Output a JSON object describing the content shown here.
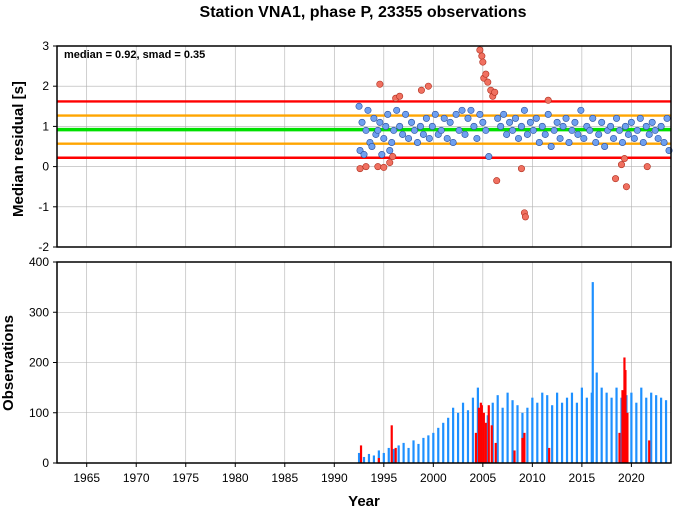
{
  "title": "Station VNA1, phase P, 23355 observations",
  "colors": {
    "median_line": "#00e000",
    "inner_band": "#ffa500",
    "outer_band": "#ff0000",
    "inlier_points": "#6fa0f0",
    "outlier_points": "#f07060",
    "obs_normal": "#1e90ff",
    "obs_flagged": "#ff0000",
    "grid": "#b0b0b0"
  },
  "chart_data": [
    {
      "type": "scatter",
      "ylabel": "Median residual [s]",
      "annotation": "median = 0.92, smad = 0.35",
      "xlim": [
        1962,
        2024
      ],
      "ylim": [
        -2,
        3
      ],
      "y_ticks": [
        "3",
        "2",
        "1",
        "0",
        "-1",
        "-2"
      ],
      "grid": true,
      "reference_lines": [
        {
          "label": "median",
          "y": 0.92
        },
        {
          "label": "median ± 1 smad",
          "y": [
            0.57,
            1.27
          ]
        },
        {
          "label": "median ± 2 smad",
          "y": [
            0.22,
            1.62
          ]
        }
      ],
      "inliers": [
        [
          1992.5,
          1.5
        ],
        [
          1992.6,
          0.4
        ],
        [
          1992.8,
          1.1
        ],
        [
          1993.0,
          0.3
        ],
        [
          1993.2,
          0.9
        ],
        [
          1993.4,
          1.4
        ],
        [
          1993.6,
          0.6
        ],
        [
          1993.8,
          0.5
        ],
        [
          1994.0,
          1.2
        ],
        [
          1994.2,
          0.8
        ],
        [
          1994.4,
          0.9
        ],
        [
          1994.6,
          1.1
        ],
        [
          1994.8,
          0.3
        ],
        [
          1995.0,
          0.7
        ],
        [
          1995.2,
          1.0
        ],
        [
          1995.4,
          1.3
        ],
        [
          1995.6,
          0.4
        ],
        [
          1995.8,
          0.6
        ],
        [
          1996.0,
          0.9
        ],
        [
          1996.3,
          1.4
        ],
        [
          1996.6,
          1.0
        ],
        [
          1996.9,
          0.8
        ],
        [
          1997.2,
          1.3
        ],
        [
          1997.5,
          0.7
        ],
        [
          1997.8,
          1.1
        ],
        [
          1998.1,
          0.9
        ],
        [
          1998.4,
          0.6
        ],
        [
          1998.7,
          1.0
        ],
        [
          1999.0,
          0.8
        ],
        [
          1999.3,
          1.2
        ],
        [
          1999.6,
          0.7
        ],
        [
          1999.9,
          1.0
        ],
        [
          2000.2,
          1.3
        ],
        [
          2000.5,
          0.8
        ],
        [
          2000.8,
          0.9
        ],
        [
          2001.1,
          1.2
        ],
        [
          2001.4,
          0.7
        ],
        [
          2001.7,
          1.1
        ],
        [
          2002.0,
          0.6
        ],
        [
          2002.3,
          1.3
        ],
        [
          2002.6,
          0.9
        ],
        [
          2002.9,
          1.4
        ],
        [
          2003.2,
          0.8
        ],
        [
          2003.5,
          1.2
        ],
        [
          2003.8,
          1.4
        ],
        [
          2004.1,
          1.0
        ],
        [
          2004.4,
          0.7
        ],
        [
          2004.7,
          1.3
        ],
        [
          2005.0,
          1.1
        ],
        [
          2005.3,
          0.9
        ],
        [
          2005.6,
          0.25
        ],
        [
          2006.5,
          1.2
        ],
        [
          2006.8,
          1.0
        ],
        [
          2007.1,
          1.3
        ],
        [
          2007.4,
          0.8
        ],
        [
          2007.7,
          1.1
        ],
        [
          2008.0,
          0.9
        ],
        [
          2008.3,
          1.2
        ],
        [
          2008.6,
          0.7
        ],
        [
          2008.9,
          1.0
        ],
        [
          2009.2,
          1.4
        ],
        [
          2009.5,
          0.8
        ],
        [
          2009.8,
          1.1
        ],
        [
          2010.1,
          0.9
        ],
        [
          2010.4,
          1.2
        ],
        [
          2010.7,
          0.6
        ],
        [
          2011.0,
          1.0
        ],
        [
          2011.3,
          0.8
        ],
        [
          2011.6,
          1.3
        ],
        [
          2011.9,
          0.5
        ],
        [
          2012.2,
          0.9
        ],
        [
          2012.5,
          1.1
        ],
        [
          2012.8,
          0.7
        ],
        [
          2013.1,
          1.0
        ],
        [
          2013.4,
          1.2
        ],
        [
          2013.7,
          0.6
        ],
        [
          2014.0,
          0.9
        ],
        [
          2014.3,
          1.1
        ],
        [
          2014.6,
          0.8
        ],
        [
          2014.9,
          1.4
        ],
        [
          2015.2,
          0.7
        ],
        [
          2015.5,
          1.0
        ],
        [
          2015.8,
          0.9
        ],
        [
          2016.1,
          1.2
        ],
        [
          2016.4,
          0.6
        ],
        [
          2016.7,
          0.8
        ],
        [
          2017.0,
          1.1
        ],
        [
          2017.3,
          0.5
        ],
        [
          2017.6,
          0.9
        ],
        [
          2017.9,
          1.0
        ],
        [
          2018.2,
          0.7
        ],
        [
          2018.5,
          1.2
        ],
        [
          2018.8,
          0.9
        ],
        [
          2019.1,
          0.6
        ],
        [
          2019.4,
          1.0
        ],
        [
          2019.7,
          0.8
        ],
        [
          2020.0,
          1.1
        ],
        [
          2020.3,
          0.7
        ],
        [
          2020.6,
          0.9
        ],
        [
          2020.9,
          1.2
        ],
        [
          2021.2,
          0.6
        ],
        [
          2021.5,
          1.0
        ],
        [
          2021.8,
          0.8
        ],
        [
          2022.1,
          1.1
        ],
        [
          2022.4,
          0.9
        ],
        [
          2022.7,
          0.7
        ],
        [
          2023.0,
          1.0
        ],
        [
          2023.3,
          0.6
        ],
        [
          2023.6,
          1.2
        ],
        [
          2023.8,
          0.4
        ]
      ],
      "outliers": [
        [
          1992.6,
          -0.05
        ],
        [
          1993.2,
          0.0
        ],
        [
          1994.4,
          0.0
        ],
        [
          1994.6,
          2.05
        ],
        [
          1995.0,
          -0.02
        ],
        [
          1995.6,
          0.1
        ],
        [
          1995.9,
          0.25
        ],
        [
          1996.2,
          1.7
        ],
        [
          1996.6,
          1.75
        ],
        [
          1998.8,
          1.9
        ],
        [
          1999.5,
          2.0
        ],
        [
          2004.7,
          2.9
        ],
        [
          2004.9,
          2.75
        ],
        [
          2005.0,
          2.6
        ],
        [
          2005.1,
          2.2
        ],
        [
          2005.3,
          2.3
        ],
        [
          2005.5,
          2.1
        ],
        [
          2005.8,
          1.9
        ],
        [
          2006.0,
          1.75
        ],
        [
          2006.2,
          1.85
        ],
        [
          2006.4,
          -0.35
        ],
        [
          2008.9,
          -0.05
        ],
        [
          2009.2,
          -1.15
        ],
        [
          2009.3,
          -1.25
        ],
        [
          2011.6,
          1.65
        ],
        [
          2018.4,
          -0.3
        ],
        [
          2019.0,
          0.05
        ],
        [
          2019.3,
          0.2
        ],
        [
          2019.5,
          -0.5
        ],
        [
          2021.6,
          0.0
        ]
      ]
    },
    {
      "type": "bar",
      "ylabel": "Observations",
      "xlabel": "Year",
      "xlim": [
        1962,
        2024
      ],
      "ylim": [
        0,
        400
      ],
      "x_ticks": [
        "1965",
        "1970",
        "1975",
        "1980",
        "1985",
        "1990",
        "1995",
        "2000",
        "2005",
        "2010",
        "2015",
        "2020"
      ],
      "y_ticks": [
        "400",
        "300",
        "200",
        "100",
        "0"
      ],
      "grid": true,
      "blue_bars": [
        [
          1992.5,
          20
        ],
        [
          1993.0,
          12
        ],
        [
          1993.5,
          18
        ],
        [
          1994.0,
          15
        ],
        [
          1994.5,
          25
        ],
        [
          1995.0,
          20
        ],
        [
          1995.5,
          30
        ],
        [
          1996.0,
          28
        ],
        [
          1996.5,
          35
        ],
        [
          1997.0,
          40
        ],
        [
          1997.5,
          30
        ],
        [
          1998.0,
          45
        ],
        [
          1998.5,
          38
        ],
        [
          1999.0,
          50
        ],
        [
          1999.5,
          55
        ],
        [
          2000.0,
          60
        ],
        [
          2000.5,
          70
        ],
        [
          2001.0,
          80
        ],
        [
          2001.5,
          90
        ],
        [
          2002.0,
          110
        ],
        [
          2002.5,
          100
        ],
        [
          2003.0,
          120
        ],
        [
          2003.5,
          105
        ],
        [
          2004.0,
          130
        ],
        [
          2004.5,
          150
        ],
        [
          2005.0,
          90
        ],
        [
          2005.5,
          95
        ],
        [
          2006.0,
          120
        ],
        [
          2006.5,
          135
        ],
        [
          2007.0,
          110
        ],
        [
          2007.5,
          140
        ],
        [
          2008.0,
          125
        ],
        [
          2008.5,
          115
        ],
        [
          2009.0,
          100
        ],
        [
          2009.5,
          110
        ],
        [
          2010.0,
          130
        ],
        [
          2010.5,
          120
        ],
        [
          2011.0,
          140
        ],
        [
          2011.5,
          135
        ],
        [
          2012.0,
          115
        ],
        [
          2012.5,
          140
        ],
        [
          2013.0,
          120
        ],
        [
          2013.5,
          130
        ],
        [
          2014.0,
          140
        ],
        [
          2014.5,
          120
        ],
        [
          2015.0,
          150
        ],
        [
          2015.5,
          130
        ],
        [
          2016.0,
          140
        ],
        [
          2016.1,
          360
        ],
        [
          2016.5,
          180
        ],
        [
          2017.0,
          150
        ],
        [
          2017.5,
          140
        ],
        [
          2018.0,
          130
        ],
        [
          2018.5,
          150
        ],
        [
          2019.0,
          130
        ],
        [
          2019.5,
          135
        ],
        [
          2020.0,
          140
        ],
        [
          2020.5,
          120
        ],
        [
          2021.0,
          150
        ],
        [
          2021.5,
          130
        ],
        [
          2022.0,
          140
        ],
        [
          2022.5,
          135
        ],
        [
          2023.0,
          130
        ],
        [
          2023.5,
          125
        ]
      ],
      "red_bars": [
        [
          1992.7,
          35
        ],
        [
          1994.5,
          10
        ],
        [
          1995.8,
          75
        ],
        [
          1996.2,
          30
        ],
        [
          2004.3,
          60
        ],
        [
          2004.6,
          110
        ],
        [
          2004.8,
          120
        ],
        [
          2004.9,
          115
        ],
        [
          2005.1,
          100
        ],
        [
          2005.3,
          80
        ],
        [
          2005.6,
          115
        ],
        [
          2005.9,
          75
        ],
        [
          2006.3,
          40
        ],
        [
          2008.2,
          25
        ],
        [
          2009.0,
          50
        ],
        [
          2009.2,
          60
        ],
        [
          2011.7,
          30
        ],
        [
          2018.8,
          60
        ],
        [
          2019.1,
          145
        ],
        [
          2019.3,
          210
        ],
        [
          2019.4,
          185
        ],
        [
          2019.6,
          100
        ],
        [
          2021.8,
          45
        ]
      ]
    }
  ]
}
